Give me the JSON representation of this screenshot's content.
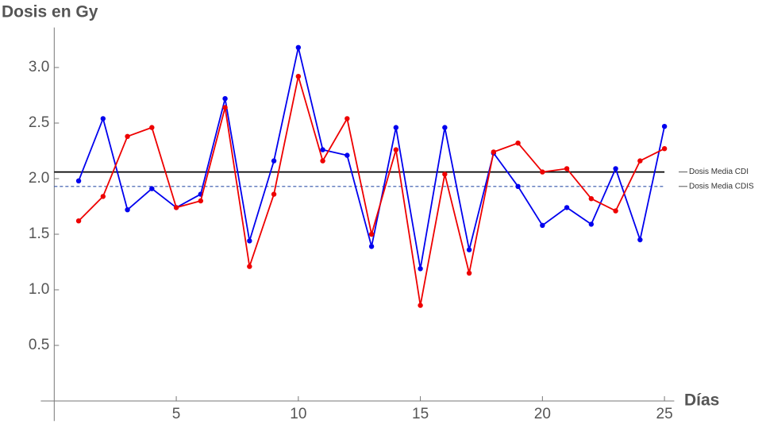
{
  "chart_data": {
    "type": "line",
    "y_label": "Dosis en Gy",
    "x_label": "Días",
    "x": [
      1,
      2,
      3,
      4,
      5,
      6,
      7,
      8,
      9,
      10,
      11,
      12,
      13,
      14,
      15,
      16,
      17,
      18,
      19,
      20,
      21,
      22,
      23,
      24,
      25
    ],
    "series": [
      {
        "color": "#0000ee",
        "values": [
          1.98,
          2.54,
          1.72,
          1.91,
          1.74,
          1.86,
          2.72,
          1.44,
          2.16,
          3.18,
          2.26,
          2.21,
          1.39,
          2.46,
          1.19,
          2.46,
          1.36,
          2.23,
          1.93,
          1.58,
          1.74,
          1.59,
          2.09,
          1.45,
          2.47
        ]
      },
      {
        "color": "#ee0000",
        "values": [
          1.62,
          1.84,
          2.38,
          2.46,
          1.74,
          1.8,
          2.64,
          1.21,
          1.86,
          2.92,
          2.16,
          2.54,
          1.5,
          2.26,
          0.86,
          2.04,
          1.15,
          2.24,
          2.32,
          2.06,
          2.09,
          1.82,
          1.71,
          2.16,
          2.27
        ]
      }
    ],
    "reference_lines": [
      {
        "value": 2.06,
        "label": "Dosis Media CDI",
        "color": "#000000",
        "dashed": false
      },
      {
        "value": 1.93,
        "label": "Dosis Media CDIS",
        "color": "#3355aa",
        "dashed": true
      }
    ],
    "xlim": [
      -0.55,
      25.4
    ],
    "ylim": [
      -0.18,
      3.36
    ],
    "xticks": [
      5,
      10,
      15,
      20,
      25
    ],
    "yticks": [
      {
        "value": 0.5,
        "label": "0.5"
      },
      {
        "value": 1,
        "label": "1.0"
      },
      {
        "value": 1.5,
        "label": "1.5"
      },
      {
        "value": 2,
        "label": "2.0"
      },
      {
        "value": 2.5,
        "label": "2.5"
      },
      {
        "value": 3,
        "label": "3.0"
      }
    ],
    "grid": false
  }
}
